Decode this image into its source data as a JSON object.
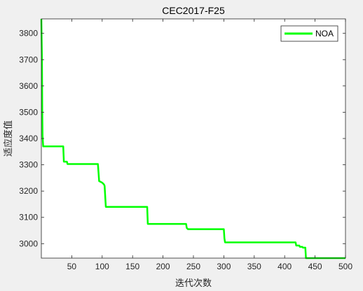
{
  "chart_data": {
    "type": "line",
    "title": "CEC2017-F25",
    "xlabel": "迭代次数",
    "ylabel": "适应度值",
    "xlim": [
      0,
      500
    ],
    "ylim": [
      2945,
      3855
    ],
    "xticks": [
      50,
      100,
      150,
      200,
      250,
      300,
      350,
      400,
      450,
      500
    ],
    "yticks": [
      3000,
      3100,
      3200,
      3300,
      3400,
      3500,
      3600,
      3700,
      3800
    ],
    "grid": false,
    "legend_position": "top-right",
    "colors": {
      "series": "#00ff00",
      "background": "#f0f0f0",
      "axes": "#ffffff"
    },
    "series": [
      {
        "name": "NOA",
        "x": [
          0,
          1,
          1.5,
          2,
          3,
          36,
          37,
          42,
          43,
          93,
          95,
          100,
          101,
          103,
          104,
          106,
          107,
          174,
          175,
          176,
          177,
          238,
          239,
          241,
          242,
          300,
          301,
          302,
          303,
          418,
          419,
          424,
          425,
          429,
          430,
          434,
          435,
          438,
          439,
          500
        ],
        "y": [
          3855,
          3700,
          3500,
          3410,
          3370,
          3370,
          3312,
          3312,
          3303,
          3303,
          3238,
          3232,
          3230,
          3225,
          3220,
          3140,
          3140,
          3140,
          3075,
          3075,
          3075,
          3075,
          3060,
          3055,
          3055,
          3055,
          3020,
          3005,
          3005,
          3005,
          2993,
          2993,
          2988,
          2988,
          2985,
          2985,
          2945,
          2945,
          2945,
          2945
        ]
      }
    ]
  }
}
